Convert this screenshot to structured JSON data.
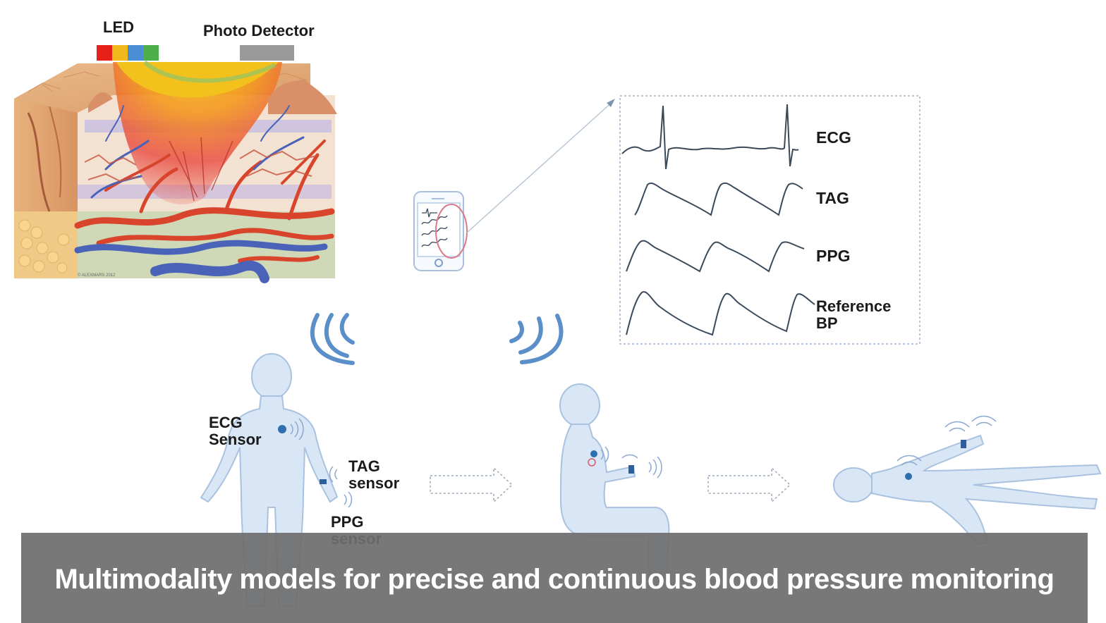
{
  "skin": {
    "led_label": "LED",
    "detector_label": "Photo Detector",
    "led_colors": [
      "#e8201a",
      "#f3b81c",
      "#4a8fd6",
      "#4caf4a"
    ],
    "detector_color": "#9a9a9a"
  },
  "signals": {
    "labels": [
      "ECG",
      "TAG",
      "PPG",
      "Reference\nBP"
    ],
    "ecg": "ECG",
    "tag": "TAG",
    "ppg": "PPG",
    "ref_line1": "Reference",
    "ref_line2": "BP"
  },
  "figures": {
    "ecg_sensor_line1": "ECG",
    "ecg_sensor_line2": "Sensor",
    "tag_sensor_line1": "TAG",
    "tag_sensor_line2": "sensor",
    "ppg_sensor_line1": "PPG",
    "ppg_sensor_line2": "sensor",
    "postures": [
      "standing",
      "sitting",
      "lying"
    ]
  },
  "colors": {
    "body_fill": "#d8e6f5",
    "body_stroke": "#a9c2e0",
    "wave_stroke": "#3a4a5a",
    "accent_blue": "#5b8fc9",
    "sensor_dot": "#2f6fb0"
  },
  "caption": {
    "text": "Multimodality models for precise and continuous blood pressure monitoring"
  }
}
